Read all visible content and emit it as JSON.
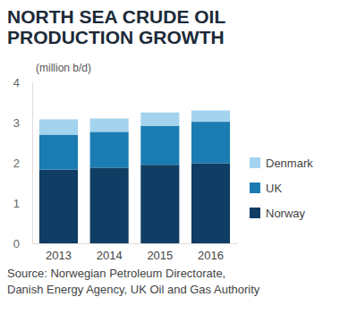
{
  "chart_data": {
    "type": "bar",
    "title": "NORTH SEA CRUDE OIL PRODUCTION GROWTH",
    "y_label": "(million b/d)",
    "source": "Source: Norwegian Petroleum Directorate, Danish Energy Agency, UK Oil and Gas Authority",
    "categories": [
      "2013",
      "2014",
      "2015",
      "2016"
    ],
    "series": [
      {
        "name": "Norway",
        "color": "#0f3d63",
        "values": [
          1.83,
          1.88,
          1.95,
          1.99
        ]
      },
      {
        "name": "UK",
        "color": "#1b7cb3",
        "values": [
          0.87,
          0.89,
          0.97,
          1.03
        ]
      },
      {
        "name": "Denmark",
        "color": "#a3d3ef",
        "values": [
          0.38,
          0.33,
          0.33,
          0.28
        ]
      }
    ],
    "stacked": true,
    "ylim": [
      0,
      4
    ],
    "yticks": [
      0,
      1,
      2,
      3,
      4
    ],
    "grid": false,
    "legend": "right"
  }
}
